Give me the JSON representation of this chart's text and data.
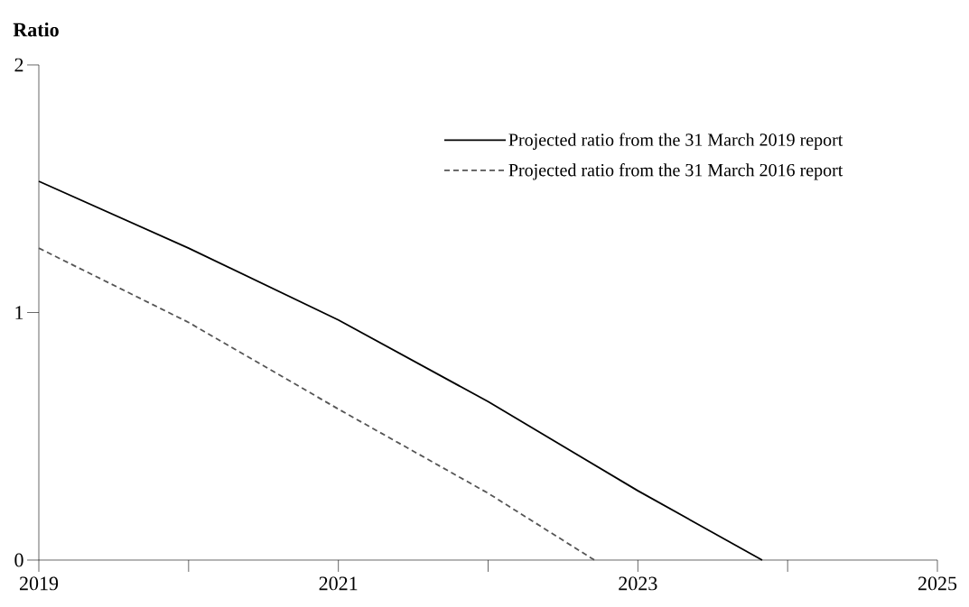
{
  "chart_data": {
    "type": "line",
    "ylabel": "Ratio",
    "xlim": [
      2019,
      2025
    ],
    "ylim": [
      0,
      2
    ],
    "xticks": [
      2019,
      {
        "value": 2020,
        "label": null
      },
      2021,
      {
        "value": 2022,
        "label": null
      },
      2023,
      {
        "value": 2024,
        "label": null
      },
      2025
    ],
    "yticks": [
      0,
      1,
      2
    ],
    "grid": false,
    "legend": "top right",
    "series": [
      {
        "name": "Projected ratio from the 31 March 2019 report",
        "color": "#000000",
        "line_style": "solid",
        "x": [
          2019,
          2020,
          2021,
          2022,
          2023,
          2023.83
        ],
        "values": [
          1.53,
          1.26,
          0.97,
          0.64,
          0.28,
          0
        ]
      },
      {
        "name": "Projected ratio from the 31 March 2016 report",
        "color": "#555555",
        "line_style": "dashed",
        "x": [
          2019,
          2020,
          2021,
          2022,
          2022.71
        ],
        "values": [
          1.26,
          0.96,
          0.61,
          0.27,
          0
        ]
      }
    ]
  }
}
